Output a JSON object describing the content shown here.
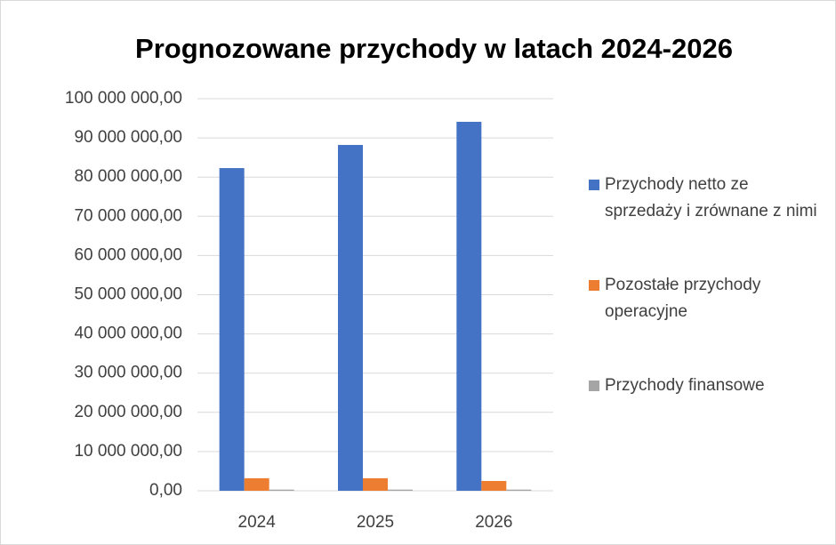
{
  "chart_data": {
    "type": "bar",
    "title": "Prognozowane przychody w latach 2024-2026",
    "categories": [
      "2024",
      "2025",
      "2026"
    ],
    "series": [
      {
        "name": "Przychody netto ze sprzedaży i zrównane z nimi",
        "color": "#4472c4",
        "values": [
          82300000,
          88200000,
          94100000
        ]
      },
      {
        "name": "Pozostałe przychody operacyjne",
        "color": "#ed7d31",
        "values": [
          3200000,
          3200000,
          2500000
        ]
      },
      {
        "name": "Przychody finansowe",
        "color": "#a5a5a5",
        "values": [
          300000,
          300000,
          300000
        ]
      }
    ],
    "ylim": [
      0,
      100000000
    ],
    "yticks": [
      {
        "value": 0,
        "label": "0,00"
      },
      {
        "value": 10000000,
        "label": "10 000 000,00"
      },
      {
        "value": 20000000,
        "label": "20 000 000,00"
      },
      {
        "value": 30000000,
        "label": "30 000 000,00"
      },
      {
        "value": 40000000,
        "label": "40 000 000,00"
      },
      {
        "value": 50000000,
        "label": "50 000 000,00"
      },
      {
        "value": 60000000,
        "label": "60 000 000,00"
      },
      {
        "value": 70000000,
        "label": "70 000 000,00"
      },
      {
        "value": 80000000,
        "label": "80 000 000,00"
      },
      {
        "value": 90000000,
        "label": "90 000 000,00"
      },
      {
        "value": 100000000,
        "label": "100 000 000,00"
      }
    ],
    "grid": true,
    "legend": "right"
  }
}
